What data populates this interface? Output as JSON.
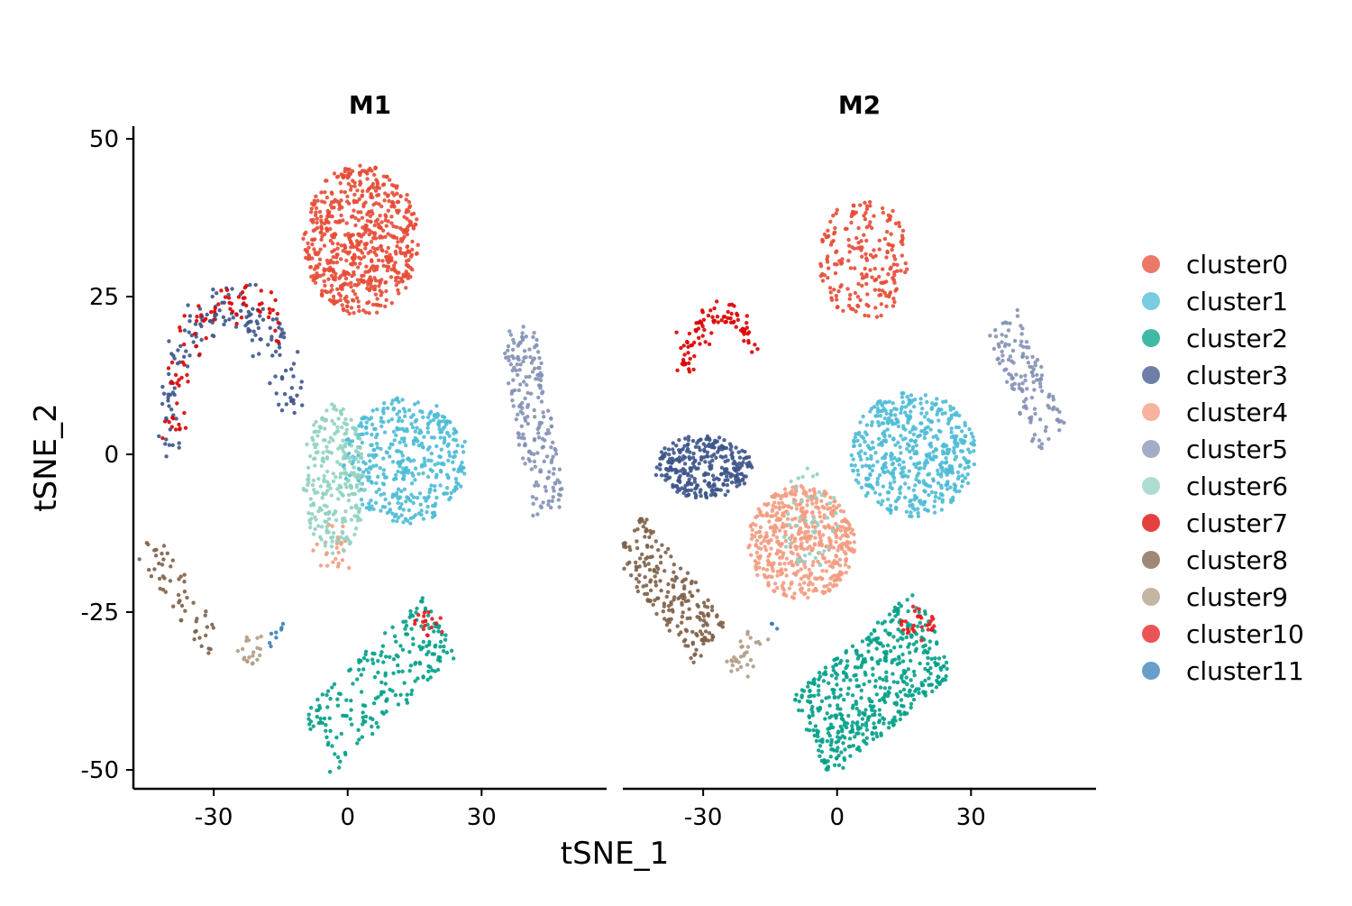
{
  "chart_data": {
    "type": "scatter",
    "xlabel": "tSNE_1",
    "ylabel": "tSNE_2",
    "xlim": [
      -48,
      58
    ],
    "ylim": [
      -53,
      52
    ],
    "xticks": [
      -30,
      0,
      30
    ],
    "xtick_labels": [
      "-30",
      "0",
      "30"
    ],
    "yticks": [
      50,
      25,
      0,
      -25,
      -50
    ],
    "ytick_labels": [
      "50",
      "25",
      "0",
      "-25",
      "-50"
    ],
    "grid": false,
    "legend_position": "right",
    "facets": [
      "M1",
      "M2"
    ],
    "series": [
      {
        "name": "cluster0",
        "color": "#E64B35"
      },
      {
        "name": "cluster1",
        "color": "#4DBBD5"
      },
      {
        "name": "cluster2",
        "color": "#00A087"
      },
      {
        "name": "cluster3",
        "color": "#3C5488"
      },
      {
        "name": "cluster4",
        "color": "#F39B7F"
      },
      {
        "name": "cluster5",
        "color": "#8491B4"
      },
      {
        "name": "cluster6",
        "color": "#91D1C2"
      },
      {
        "name": "cluster7",
        "color": "#DC0000"
      },
      {
        "name": "cluster8",
        "color": "#7E6148"
      },
      {
        "name": "cluster9",
        "color": "#B09C85"
      },
      {
        "name": "cluster10",
        "color": "#E41A1C"
      },
      {
        "name": "cluster11",
        "color": "#377EB8"
      }
    ],
    "clusters": {
      "M1": [
        {
          "series": 0,
          "shape": "ellipse",
          "center": [
            3,
            34
          ],
          "spread": [
            13,
            12
          ],
          "n": 650
        },
        {
          "series": 1,
          "shape": "ellipse",
          "center": [
            13,
            -1
          ],
          "spread": [
            14,
            10
          ],
          "n": 420
        },
        {
          "series": 2,
          "shape": "band",
          "from": [
            -7,
            -46
          ],
          "to": [
            21,
            -27
          ],
          "width": 6,
          "n": 220
        },
        {
          "series": 3,
          "shape": "arc",
          "center": [
            -26,
            6
          ],
          "radius": [
            14,
            17
          ],
          "angles": [
            200,
            0
          ],
          "n": 160
        },
        {
          "series": 4,
          "shape": "ellipse",
          "center": [
            -3,
            -15
          ],
          "spread": [
            5,
            4
          ],
          "n": 25
        },
        {
          "series": 5,
          "shape": "band",
          "from": [
            38,
            20
          ],
          "to": [
            45,
            -9
          ],
          "width": 4,
          "n": 200
        },
        {
          "series": 6,
          "shape": "ellipse",
          "center": [
            -3,
            -4
          ],
          "spread": [
            7,
            12
          ],
          "n": 260
        },
        {
          "series": 7,
          "shape": "arc",
          "center": [
            -25,
            8
          ],
          "radius": [
            14,
            16
          ],
          "angles": [
            200,
            40
          ],
          "n": 80
        },
        {
          "series": 8,
          "shape": "band",
          "from": [
            -45,
            -14
          ],
          "to": [
            -29,
            -31
          ],
          "width": 3,
          "n": 55
        },
        {
          "series": 9,
          "shape": "band",
          "from": [
            -23,
            -33
          ],
          "to": [
            -19,
            -29
          ],
          "width": 3,
          "n": 20
        },
        {
          "series": 10,
          "shape": "ellipse",
          "center": [
            18,
            -27
          ],
          "spread": [
            4,
            2
          ],
          "n": 18
        },
        {
          "series": 11,
          "shape": "band",
          "from": [
            -18,
            -30
          ],
          "to": [
            -14,
            -27
          ],
          "width": 1,
          "n": 8
        }
      ],
      "M2": [
        {
          "series": 0,
          "shape": "ellipse",
          "center": [
            6,
            31
          ],
          "spread": [
            10,
            10
          ],
          "n": 210
        },
        {
          "series": 1,
          "shape": "ellipse",
          "center": [
            17,
            0
          ],
          "spread": [
            14,
            10
          ],
          "n": 520
        },
        {
          "series": 2,
          "shape": "band",
          "from": [
            -6,
            -45
          ],
          "to": [
            22,
            -28
          ],
          "width": 8,
          "n": 520
        },
        {
          "series": 3,
          "shape": "ellipse",
          "center": [
            -30,
            -2
          ],
          "spread": [
            11,
            5
          ],
          "n": 300
        },
        {
          "series": 4,
          "shape": "ellipse",
          "center": [
            -8,
            -14
          ],
          "spread": [
            12,
            9
          ],
          "n": 520
        },
        {
          "series": 5,
          "shape": "band",
          "from": [
            37,
            21
          ],
          "to": [
            48,
            2
          ],
          "width": 4,
          "n": 130
        },
        {
          "series": 6,
          "shape": "ellipse",
          "center": [
            -6,
            -10
          ],
          "spread": [
            7,
            8
          ],
          "n": 45
        },
        {
          "series": 7,
          "shape": "arc",
          "center": [
            -26,
            13
          ],
          "radius": [
            8,
            9
          ],
          "angles": [
            180,
            20
          ],
          "n": 90
        },
        {
          "series": 8,
          "shape": "band",
          "from": [
            -47,
            -13
          ],
          "to": [
            -28,
            -30
          ],
          "width": 5,
          "n": 220
        },
        {
          "series": 9,
          "shape": "band",
          "from": [
            -23,
            -35
          ],
          "to": [
            -17,
            -28
          ],
          "width": 3,
          "n": 30
        },
        {
          "series": 10,
          "shape": "ellipse",
          "center": [
            18,
            -27
          ],
          "spread": [
            4,
            3
          ],
          "n": 30
        },
        {
          "series": 11,
          "shape": "ellipse",
          "center": [
            -14,
            -27
          ],
          "spread": [
            1,
            1
          ],
          "n": 3
        }
      ]
    }
  }
}
